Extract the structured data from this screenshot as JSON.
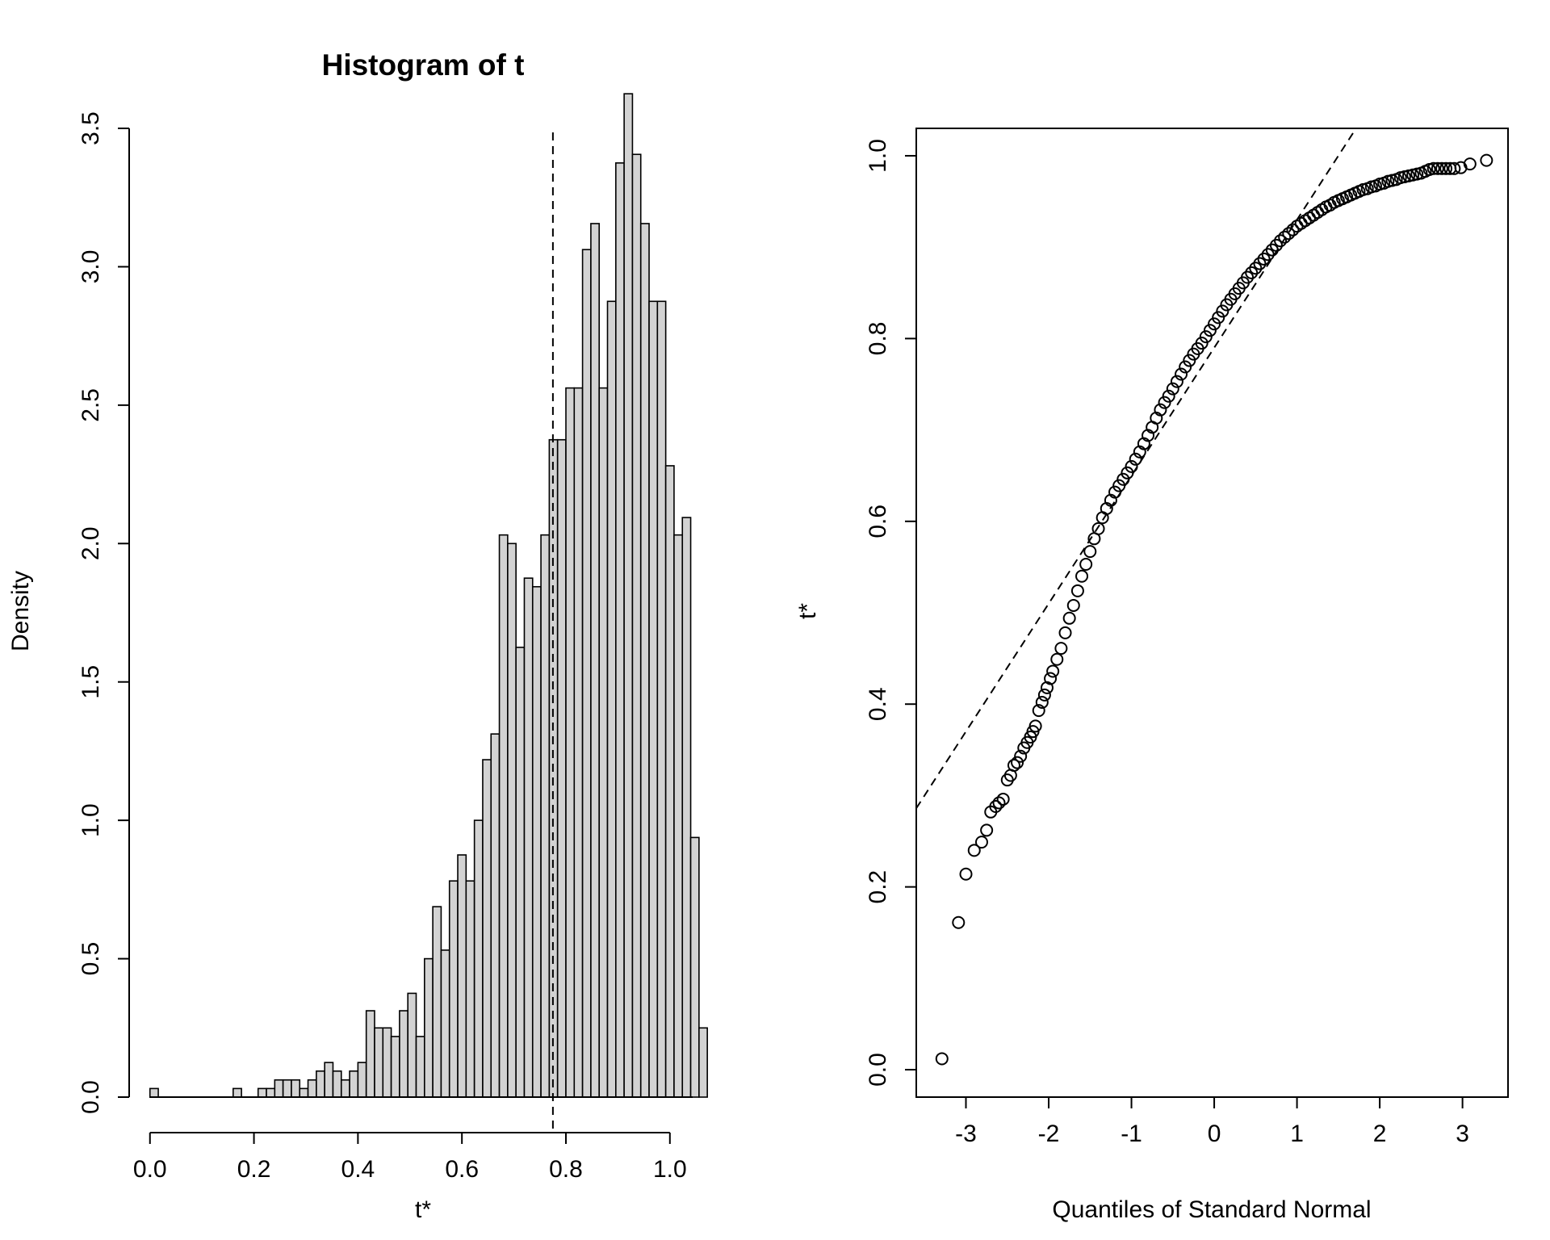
{
  "chart_data": [
    {
      "type": "bar",
      "title": "Histogram of t",
      "xlabel": "t*",
      "ylabel": "Density",
      "xlim": [
        -0.04,
        1.05
      ],
      "ylim": [
        0,
        3.5
      ],
      "xticks": [
        0.0,
        0.2,
        0.4,
        0.6,
        0.8,
        1.0
      ],
      "xtick_labels": [
        "0.0",
        "0.2",
        "0.4",
        "0.6",
        "0.8",
        "1.0"
      ],
      "yticks": [
        0.0,
        0.5,
        1.0,
        1.5,
        2.0,
        2.5,
        3.0,
        3.5
      ],
      "ytick_labels": [
        "0.0",
        "0.5",
        "1.0",
        "1.5",
        "2.0",
        "2.5",
        "3.0",
        "3.5"
      ],
      "bin_start": 0.0,
      "bin_width": 0.016,
      "densities": [
        0.031,
        0,
        0,
        0,
        0,
        0,
        0,
        0,
        0,
        0,
        0.031,
        0,
        0,
        0.031,
        0.031,
        0.062,
        0.062,
        0.062,
        0.031,
        0.062,
        0.094,
        0.125,
        0.094,
        0.062,
        0.094,
        0.125,
        0.312,
        0.25,
        0.25,
        0.219,
        0.312,
        0.375,
        0.219,
        0.5,
        0.688,
        0.531,
        0.781,
        0.875,
        0.781,
        1.0,
        1.219,
        1.312,
        2.031,
        2.0,
        1.625,
        1.875,
        1.844,
        2.031,
        2.375,
        2.375,
        2.562,
        2.562,
        3.062,
        3.156,
        2.562,
        2.875,
        3.375,
        3.625,
        3.406,
        3.156,
        2.875,
        2.875,
        2.281,
        2.031,
        2.094,
        0.938,
        0.25
      ],
      "reference_line_x": 0.775,
      "legend": "none",
      "grid": false
    },
    {
      "type": "scatter",
      "title": "",
      "xlabel": "Quantiles of Standard Normal",
      "ylabel": "t*",
      "xlim": [
        -3.6,
        3.55
      ],
      "ylim": [
        -0.03,
        1.03
      ],
      "xticks": [
        -3,
        -2,
        -1,
        0,
        1,
        2,
        3
      ],
      "xtick_labels": [
        "-3",
        "-2",
        "-1",
        "0",
        "1",
        "2",
        "3"
      ],
      "yticks": [
        0.0,
        0.2,
        0.4,
        0.6,
        0.8,
        1.0
      ],
      "ytick_labels": [
        "0.0",
        "0.2",
        "0.4",
        "0.6",
        "0.8",
        "1.0"
      ],
      "points": [
        [
          -3.29,
          0.012
        ],
        [
          -3.09,
          0.161
        ],
        [
          -3.0,
          0.214
        ],
        [
          -2.9,
          0.24
        ],
        [
          -2.81,
          0.249
        ],
        [
          -2.75,
          0.262
        ],
        [
          -2.7,
          0.282
        ],
        [
          -2.64,
          0.288
        ],
        [
          -2.6,
          0.292
        ],
        [
          -2.55,
          0.296
        ],
        [
          -2.5,
          0.317
        ],
        [
          -2.46,
          0.322
        ],
        [
          -2.42,
          0.333
        ],
        [
          -2.38,
          0.336
        ],
        [
          -2.34,
          0.343
        ],
        [
          -2.3,
          0.352
        ],
        [
          -2.26,
          0.358
        ],
        [
          -2.22,
          0.364
        ],
        [
          -2.19,
          0.37
        ],
        [
          -2.16,
          0.376
        ],
        [
          -2.12,
          0.393
        ],
        [
          -2.08,
          0.402
        ],
        [
          -2.05,
          0.41
        ],
        [
          -2.02,
          0.418
        ],
        [
          -1.98,
          0.428
        ],
        [
          -1.95,
          0.436
        ],
        [
          -1.9,
          0.449
        ],
        [
          -1.85,
          0.461
        ],
        [
          -1.8,
          0.478
        ],
        [
          -1.75,
          0.494
        ],
        [
          -1.7,
          0.508
        ],
        [
          -1.65,
          0.524
        ],
        [
          -1.6,
          0.54
        ],
        [
          -1.55,
          0.553
        ],
        [
          -1.5,
          0.567
        ],
        [
          -1.45,
          0.581
        ],
        [
          -1.4,
          0.592
        ],
        [
          -1.35,
          0.604
        ],
        [
          -1.3,
          0.614
        ],
        [
          -1.25,
          0.623
        ],
        [
          -1.2,
          0.632
        ],
        [
          -1.15,
          0.639
        ],
        [
          -1.1,
          0.646
        ],
        [
          -1.05,
          0.653
        ],
        [
          -1.0,
          0.66
        ],
        [
          -0.95,
          0.668
        ],
        [
          -0.9,
          0.676
        ],
        [
          -0.85,
          0.685
        ],
        [
          -0.8,
          0.694
        ],
        [
          -0.75,
          0.703
        ],
        [
          -0.7,
          0.713
        ],
        [
          -0.65,
          0.722
        ],
        [
          -0.6,
          0.73
        ],
        [
          -0.55,
          0.737
        ],
        [
          -0.5,
          0.745
        ],
        [
          -0.45,
          0.753
        ],
        [
          -0.4,
          0.761
        ],
        [
          -0.35,
          0.769
        ],
        [
          -0.3,
          0.776
        ],
        [
          -0.25,
          0.783
        ],
        [
          -0.2,
          0.789
        ],
        [
          -0.15,
          0.795
        ],
        [
          -0.1,
          0.802
        ],
        [
          -0.05,
          0.809
        ],
        [
          0.0,
          0.816
        ],
        [
          0.05,
          0.823
        ],
        [
          0.1,
          0.83
        ],
        [
          0.15,
          0.837
        ],
        [
          0.2,
          0.843
        ],
        [
          0.25,
          0.849
        ],
        [
          0.3,
          0.855
        ],
        [
          0.35,
          0.861
        ],
        [
          0.4,
          0.867
        ],
        [
          0.45,
          0.872
        ],
        [
          0.5,
          0.877
        ],
        [
          0.55,
          0.882
        ],
        [
          0.6,
          0.887
        ],
        [
          0.65,
          0.892
        ],
        [
          0.7,
          0.897
        ],
        [
          0.75,
          0.902
        ],
        [
          0.8,
          0.907
        ],
        [
          0.85,
          0.911
        ],
        [
          0.9,
          0.915
        ],
        [
          0.95,
          0.919
        ],
        [
          1.0,
          0.923
        ],
        [
          1.05,
          0.926
        ],
        [
          1.1,
          0.929
        ],
        [
          1.15,
          0.932
        ],
        [
          1.2,
          0.935
        ],
        [
          1.25,
          0.938
        ],
        [
          1.3,
          0.941
        ],
        [
          1.35,
          0.944
        ],
        [
          1.4,
          0.946
        ],
        [
          1.45,
          0.949
        ],
        [
          1.5,
          0.951
        ],
        [
          1.55,
          0.953
        ],
        [
          1.6,
          0.955
        ],
        [
          1.65,
          0.957
        ],
        [
          1.7,
          0.959
        ],
        [
          1.75,
          0.961
        ],
        [
          1.8,
          0.963
        ],
        [
          1.85,
          0.964
        ],
        [
          1.9,
          0.966
        ],
        [
          1.95,
          0.967
        ],
        [
          2.0,
          0.969
        ],
        [
          2.05,
          0.97
        ],
        [
          2.1,
          0.972
        ],
        [
          2.15,
          0.973
        ],
        [
          2.2,
          0.974
        ],
        [
          2.25,
          0.976
        ],
        [
          2.3,
          0.977
        ],
        [
          2.35,
          0.978
        ],
        [
          2.4,
          0.979
        ],
        [
          2.45,
          0.98
        ],
        [
          2.5,
          0.981
        ],
        [
          2.55,
          0.983
        ],
        [
          2.6,
          0.985
        ],
        [
          2.65,
          0.986
        ],
        [
          2.7,
          0.986
        ],
        [
          2.75,
          0.986
        ],
        [
          2.8,
          0.986
        ],
        [
          2.85,
          0.986
        ],
        [
          2.9,
          0.986
        ],
        [
          2.98,
          0.987
        ],
        [
          3.09,
          0.991
        ],
        [
          3.29,
          0.995
        ]
      ],
      "reference_line": {
        "intercept": 0.79,
        "slope": 0.14
      },
      "legend": "none",
      "grid": false
    }
  ]
}
